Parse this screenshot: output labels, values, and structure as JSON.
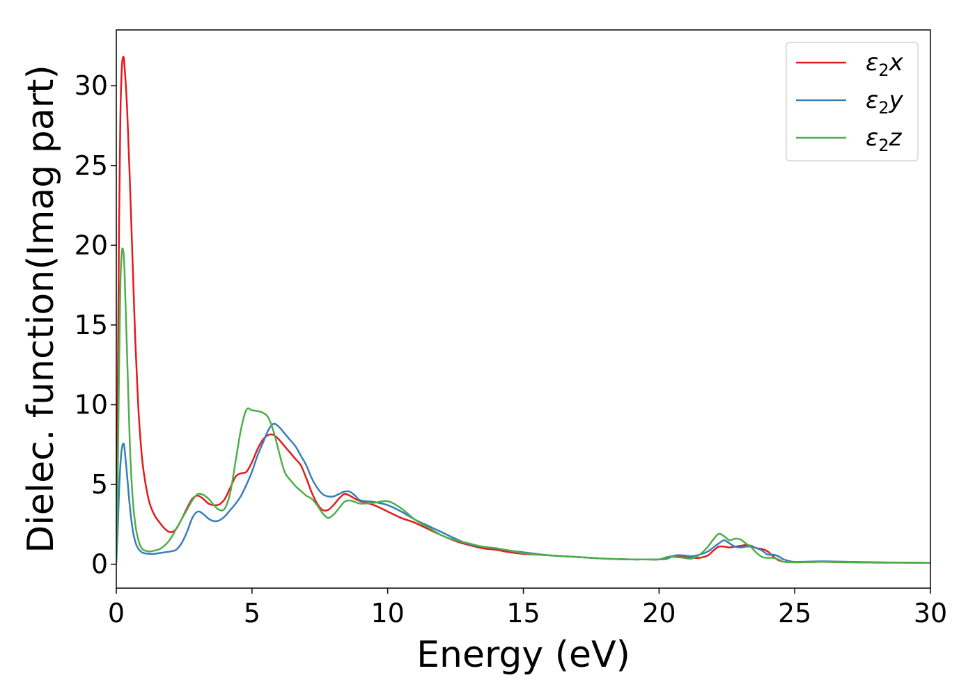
{
  "chart_data": {
    "type": "line",
    "xlabel": "Energy (eV)",
    "ylabel": "Dielec. function(Imag part)",
    "xlim": [
      0,
      30
    ],
    "ylim": [
      -1.5,
      33.5
    ],
    "xticks": [
      0,
      5,
      10,
      15,
      20,
      25,
      30
    ],
    "yticks": [
      0,
      5,
      10,
      15,
      20,
      25,
      30
    ],
    "grid": false,
    "legend": {
      "position": "top-right",
      "entries": [
        {
          "main": "ε",
          "sub": "2",
          "suffix": "x",
          "color": "#e41a1c"
        },
        {
          "main": "ε",
          "sub": "2",
          "suffix": "y",
          "color": "#377eb8"
        },
        {
          "main": "ε",
          "sub": "2",
          "suffix": "z",
          "color": "#4daf4a"
        }
      ]
    },
    "series": [
      {
        "name": "ε2x",
        "color": "#e41a1c",
        "x": [
          0,
          0.05,
          0.1,
          0.15,
          0.2,
          0.25,
          0.3,
          0.4,
          0.5,
          0.6,
          0.7,
          0.8,
          0.9,
          1.0,
          1.2,
          1.4,
          1.6,
          1.8,
          2.0,
          2.2,
          2.4,
          2.6,
          2.8,
          3.0,
          3.2,
          3.4,
          3.6,
          3.8,
          4.0,
          4.2,
          4.4,
          4.6,
          4.8,
          5.0,
          5.2,
          5.4,
          5.6,
          5.8,
          6.0,
          6.2,
          6.4,
          6.6,
          6.8,
          7.0,
          7.2,
          7.4,
          7.6,
          7.8,
          8.0,
          8.2,
          8.4,
          8.6,
          8.8,
          9.0,
          9.5,
          10.0,
          10.5,
          11.0,
          11.5,
          12.0,
          12.5,
          13.0,
          13.5,
          14.0,
          14.5,
          15.0,
          16.0,
          17.0,
          18.0,
          19.0,
          19.5,
          20.0,
          20.3,
          20.6,
          20.9,
          21.2,
          21.5,
          21.8,
          22.0,
          22.2,
          22.4,
          22.6,
          22.8,
          23.0,
          23.2,
          23.4,
          23.6,
          23.8,
          24.0,
          24.2,
          24.4,
          24.6,
          25.0,
          26.0,
          27.0,
          28.0,
          29.0,
          30.0
        ],
        "y": [
          0.5,
          10,
          21,
          28,
          31,
          31.8,
          31.3,
          28.5,
          24,
          19,
          14,
          10.2,
          7.6,
          5.9,
          4.0,
          3.1,
          2.6,
          2.2,
          2.0,
          2.2,
          2.8,
          3.5,
          4.1,
          4.3,
          4.1,
          3.8,
          3.7,
          3.75,
          4.1,
          4.8,
          5.5,
          5.7,
          5.8,
          6.4,
          7.2,
          7.8,
          8.1,
          8.1,
          7.8,
          7.4,
          7.0,
          6.6,
          6.2,
          5.4,
          4.5,
          3.8,
          3.4,
          3.4,
          3.7,
          4.1,
          4.4,
          4.3,
          4.1,
          3.95,
          3.7,
          3.3,
          2.9,
          2.6,
          2.2,
          1.8,
          1.45,
          1.2,
          1.0,
          0.9,
          0.75,
          0.65,
          0.55,
          0.45,
          0.35,
          0.3,
          0.3,
          0.3,
          0.45,
          0.5,
          0.45,
          0.4,
          0.4,
          0.55,
          0.85,
          1.1,
          1.1,
          1.05,
          1.1,
          1.15,
          1.2,
          1.15,
          1.0,
          0.95,
          0.8,
          0.5,
          0.25,
          0.15,
          0.12,
          0.15,
          0.12,
          0.1,
          0.1,
          0.08
        ]
      },
      {
        "name": "ε2y",
        "color": "#377eb8",
        "x": [
          0,
          0.05,
          0.1,
          0.15,
          0.2,
          0.25,
          0.3,
          0.4,
          0.5,
          0.6,
          0.7,
          0.8,
          0.9,
          1.0,
          1.2,
          1.4,
          1.6,
          1.8,
          2.0,
          2.2,
          2.4,
          2.6,
          2.8,
          3.0,
          3.2,
          3.4,
          3.6,
          3.8,
          4.0,
          4.2,
          4.4,
          4.6,
          4.8,
          5.0,
          5.2,
          5.4,
          5.6,
          5.8,
          6.0,
          6.2,
          6.4,
          6.6,
          6.8,
          7.0,
          7.2,
          7.4,
          7.6,
          7.8,
          8.0,
          8.2,
          8.4,
          8.6,
          8.8,
          9.0,
          9.5,
          10.0,
          10.5,
          11.0,
          11.5,
          12.0,
          12.5,
          13.0,
          13.5,
          14.0,
          14.5,
          15.0,
          16.0,
          17.0,
          18.0,
          19.0,
          19.5,
          20.0,
          20.3,
          20.6,
          20.9,
          21.2,
          21.5,
          21.8,
          22.0,
          22.2,
          22.4,
          22.6,
          22.8,
          23.0,
          23.2,
          23.4,
          23.6,
          23.8,
          24.0,
          24.2,
          24.4,
          24.6,
          25.0,
          26.0,
          27.0,
          28.0,
          29.0,
          30.0
        ],
        "y": [
          0.1,
          2.0,
          4.5,
          6.2,
          7.2,
          7.55,
          7.3,
          5.5,
          3.6,
          2.2,
          1.4,
          1.0,
          0.8,
          0.7,
          0.65,
          0.65,
          0.7,
          0.75,
          0.8,
          0.9,
          1.3,
          2.0,
          2.9,
          3.3,
          3.15,
          2.85,
          2.7,
          2.75,
          3.0,
          3.4,
          3.8,
          4.3,
          5.0,
          5.8,
          6.8,
          7.6,
          8.4,
          8.8,
          8.6,
          8.2,
          7.8,
          7.4,
          6.8,
          6.2,
          5.4,
          4.8,
          4.4,
          4.25,
          4.25,
          4.4,
          4.55,
          4.55,
          4.3,
          4.0,
          3.9,
          3.7,
          3.3,
          2.8,
          2.4,
          2.0,
          1.6,
          1.25,
          1.1,
          1.0,
          0.85,
          0.75,
          0.55,
          0.45,
          0.35,
          0.3,
          0.3,
          0.3,
          0.35,
          0.55,
          0.55,
          0.5,
          0.6,
          0.8,
          1.05,
          1.3,
          1.5,
          1.3,
          1.1,
          1.05,
          1.1,
          1.1,
          1.0,
          0.85,
          0.6,
          0.6,
          0.5,
          0.3,
          0.15,
          0.18,
          0.15,
          0.12,
          0.1,
          0.08
        ]
      },
      {
        "name": "ε2z",
        "color": "#4daf4a",
        "x": [
          0,
          0.05,
          0.1,
          0.15,
          0.2,
          0.25,
          0.3,
          0.4,
          0.5,
          0.6,
          0.7,
          0.8,
          0.9,
          1.0,
          1.2,
          1.4,
          1.6,
          1.8,
          2.0,
          2.2,
          2.4,
          2.6,
          2.8,
          3.0,
          3.2,
          3.4,
          3.6,
          3.8,
          4.0,
          4.2,
          4.4,
          4.6,
          4.8,
          5.0,
          5.2,
          5.4,
          5.6,
          5.8,
          6.0,
          6.2,
          6.4,
          6.6,
          6.8,
          7.0,
          7.2,
          7.4,
          7.6,
          7.8,
          8.0,
          8.2,
          8.4,
          8.6,
          8.8,
          9.0,
          9.5,
          10.0,
          10.5,
          11.0,
          11.5,
          12.0,
          12.5,
          13.0,
          13.5,
          14.0,
          14.5,
          15.0,
          16.0,
          17.0,
          18.0,
          19.0,
          19.5,
          20.0,
          20.3,
          20.6,
          20.9,
          21.2,
          21.5,
          21.8,
          22.0,
          22.2,
          22.4,
          22.6,
          22.8,
          23.0,
          23.2,
          23.4,
          23.6,
          23.8,
          24.0,
          24.2,
          24.4,
          24.6,
          25.0,
          26.0,
          27.0,
          28.0,
          29.0,
          30.0
        ],
        "y": [
          0.2,
          5,
          12,
          17.5,
          19.5,
          19.7,
          18.5,
          13,
          7.5,
          4.2,
          2.5,
          1.6,
          1.1,
          0.9,
          0.8,
          0.85,
          0.95,
          1.2,
          1.6,
          2.2,
          2.8,
          3.4,
          4.0,
          4.4,
          4.35,
          4.1,
          3.7,
          3.4,
          3.5,
          4.5,
          6.5,
          8.5,
          9.7,
          9.65,
          9.6,
          9.5,
          9.2,
          8.3,
          7.0,
          5.8,
          5.3,
          4.9,
          4.6,
          4.3,
          4.1,
          3.7,
          3.2,
          2.9,
          3.1,
          3.5,
          3.9,
          4.0,
          3.9,
          3.8,
          3.85,
          3.95,
          3.5,
          2.8,
          2.3,
          1.8,
          1.5,
          1.3,
          1.1,
          1.0,
          0.85,
          0.7,
          0.55,
          0.45,
          0.35,
          0.3,
          0.3,
          0.3,
          0.45,
          0.45,
          0.4,
          0.35,
          0.6,
          1.1,
          1.55,
          1.9,
          1.75,
          1.5,
          1.6,
          1.55,
          1.3,
          1.05,
          0.7,
          0.45,
          0.4,
          0.4,
          0.3,
          0.15,
          0.12,
          0.15,
          0.12,
          0.1,
          0.1,
          0.08
        ]
      }
    ]
  }
}
